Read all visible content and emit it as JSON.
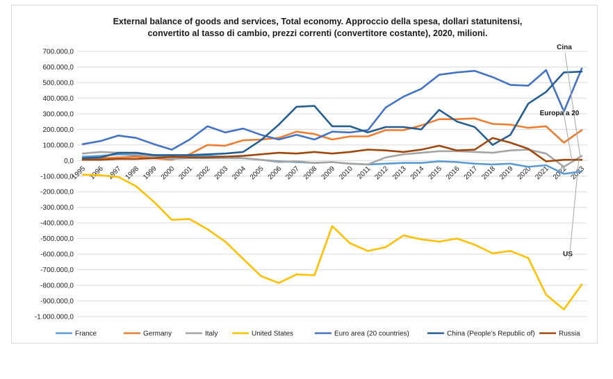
{
  "chart_data": {
    "type": "line",
    "title_lines": [
      "External balance of goods and services, Total economy. Approccio della spesa, dollari statunitensi,",
      "convertito al tasso di cambio, prezzi correnti (convertitore costante), 2020, milioni."
    ],
    "x": [
      "1995",
      "1996",
      "1997",
      "1998",
      "1999",
      "2000",
      "2001",
      "2002",
      "2003",
      "2004",
      "2005",
      "2006",
      "2007",
      "2008",
      "2009",
      "2010",
      "2011",
      "2012",
      "2013",
      "2014",
      "2015",
      "2016",
      "2017",
      "2018",
      "2019",
      "2020",
      "2021",
      "2022",
      "2023"
    ],
    "ylim": [
      -1000000,
      700000
    ],
    "yticks": [
      700000,
      600000,
      500000,
      400000,
      300000,
      200000,
      100000,
      0,
      -100000,
      -200000,
      -300000,
      -400000,
      -500000,
      -600000,
      -700000,
      -800000,
      -900000,
      -1000000
    ],
    "ytick_labels": [
      "700.000,0",
      "600.000,0",
      "500.000,0",
      "400.000,0",
      "300.000,0",
      "200.000,0",
      "100.000,0",
      "0,0",
      "-100.000,0",
      "-200.000,0",
      "-300.000,0",
      "-400.000,0",
      "-500.000,0",
      "-600.000,0",
      "-700.000,0",
      "-800.000,0",
      "-900.000,0",
      "-1.000.000,0"
    ],
    "grid": true,
    "legend_position": "bottom",
    "series": [
      {
        "name": "France",
        "color": "#5b9bd5",
        "values": [
          25000,
          30000,
          40000,
          35000,
          30000,
          20000,
          25000,
          30000,
          25000,
          15000,
          5000,
          -5000,
          -10000,
          -15000,
          -10000,
          -20000,
          -25000,
          -20000,
          -15000,
          -15000,
          -5000,
          -10000,
          -20000,
          -25000,
          -20000,
          -40000,
          -30000,
          -85000,
          -70000
        ]
      },
      {
        "name": "Germany",
        "color": "#ed7d31",
        "values": [
          10000,
          15000,
          20000,
          25000,
          15000,
          5000,
          40000,
          100000,
          95000,
          130000,
          135000,
          145000,
          185000,
          170000,
          135000,
          155000,
          155000,
          195000,
          195000,
          225000,
          265000,
          265000,
          270000,
          235000,
          230000,
          210000,
          220000,
          115000,
          195000
        ]
      },
      {
        "name": "Italy",
        "color": "#a5a5a5",
        "values": [
          45000,
          55000,
          50000,
          40000,
          25000,
          10000,
          15000,
          15000,
          15000,
          15000,
          5000,
          -10000,
          -5000,
          -15000,
          -10000,
          -20000,
          -25000,
          20000,
          40000,
          50000,
          60000,
          60000,
          55000,
          50000,
          65000,
          70000,
          45000,
          -40000,
          30000
        ]
      },
      {
        "name": "United States",
        "color": "#ffc000",
        "values": [
          -90000,
          -95000,
          -105000,
          -165000,
          -265000,
          -380000,
          -375000,
          -440000,
          -520000,
          -630000,
          -740000,
          -785000,
          -730000,
          -735000,
          -420000,
          -530000,
          -580000,
          -555000,
          -480000,
          -505000,
          -520000,
          -500000,
          -540000,
          -595000,
          -580000,
          -625000,
          -860000,
          -955000,
          -795000
        ]
      },
      {
        "name": "Euro area (20 countries)",
        "color": "#4472c4",
        "values": [
          105000,
          125000,
          160000,
          145000,
          105000,
          70000,
          135000,
          220000,
          180000,
          205000,
          165000,
          135000,
          165000,
          135000,
          185000,
          180000,
          195000,
          340000,
          410000,
          460000,
          550000,
          565000,
          575000,
          535000,
          485000,
          480000,
          580000,
          315000,
          590000
        ]
      },
      {
        "name": "China (People’s Republic of)",
        "color": "#255e91",
        "values": [
          15000,
          20000,
          50000,
          50000,
          35000,
          35000,
          35000,
          40000,
          45000,
          55000,
          130000,
          230000,
          345000,
          350000,
          220000,
          220000,
          180000,
          215000,
          215000,
          200000,
          325000,
          250000,
          215000,
          100000,
          165000,
          365000,
          440000,
          565000,
          570000
        ]
      },
      {
        "name": "Russia",
        "color": "#9e480e",
        "values": [
          5000,
          5000,
          10000,
          10000,
          15000,
          25000,
          20000,
          20000,
          25000,
          30000,
          40000,
          50000,
          45000,
          55000,
          45000,
          55000,
          70000,
          65000,
          55000,
          70000,
          95000,
          65000,
          70000,
          145000,
          115000,
          75000,
          -5000,
          5000,
          5000
        ]
      }
    ],
    "annotations": [
      {
        "text": "Cina",
        "series": "China (People’s Republic of)"
      },
      {
        "text": "Europa a 20",
        "series": "Euro area (20 countries)"
      },
      {
        "text": "US",
        "series": "United States"
      }
    ]
  }
}
